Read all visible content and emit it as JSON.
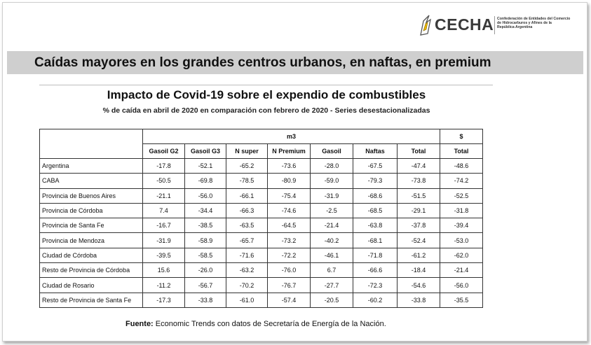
{
  "logo": {
    "name": "CECHA",
    "subtitle_lines": [
      "Confederación de Entidades del Comercio",
      "de Hidrocarburos y Afines de la",
      "República Argentina"
    ]
  },
  "banner": "Caídas mayores en los grandes centros urbanos, en naftas, en premium",
  "title": "Impacto de Covid-19 sobre el expendio de combustibles",
  "subtitle": "% de caída en abril de 2020 en comparación con febrero de 2020 - Series desestacionalizadas",
  "table": {
    "group_m3": "m3",
    "group_money": "$",
    "columns": [
      "Gasoil G2",
      "Gasoil G3",
      "N super",
      "N Premium",
      "Gasoil",
      "Naftas",
      "Total",
      "Total"
    ],
    "rows": [
      {
        "name": "Argentina",
        "values": [
          "-17.8",
          "-52.1",
          "-65.2",
          "-73.6",
          "-28.0",
          "-67.5",
          "-47.4",
          "-48.6"
        ]
      },
      {
        "name": "CABA",
        "values": [
          "-50.5",
          "-69.8",
          "-78.5",
          "-80.9",
          "-59.0",
          "-79.3",
          "-73.8",
          "-74.2"
        ]
      },
      {
        "name": "Provincia de Buenos Aires",
        "values": [
          "-21.1",
          "-56.0",
          "-66.1",
          "-75.4",
          "-31.9",
          "-68.6",
          "-51.5",
          "-52.5"
        ]
      },
      {
        "name": "Provincia de Córdoba",
        "values": [
          "7.4",
          "-34.4",
          "-66.3",
          "-74.6",
          "-2.5",
          "-68.5",
          "-29.1",
          "-31.8"
        ]
      },
      {
        "name": "Provincia de Santa Fe",
        "values": [
          "-16.7",
          "-38.5",
          "-63.5",
          "-64.5",
          "-21.4",
          "-63.8",
          "-37.8",
          "-39.4"
        ]
      },
      {
        "name": "Provincia de Mendoza",
        "values": [
          "-31.9",
          "-58.9",
          "-65.7",
          "-73.2",
          "-40.2",
          "-68.1",
          "-52.4",
          "-53.0"
        ]
      },
      {
        "name": "Ciudad de Córdoba",
        "values": [
          "-39.5",
          "-58.5",
          "-71.6",
          "-72.2",
          "-46.1",
          "-71.8",
          "-61.2",
          "-62.0"
        ]
      },
      {
        "name": "Resto de Provincia de Córdoba",
        "values": [
          "15.6",
          "-26.0",
          "-63.2",
          "-76.0",
          "6.7",
          "-66.6",
          "-18.4",
          "-21.4"
        ]
      },
      {
        "name": "Ciudad de Rosario",
        "values": [
          "-11.2",
          "-56.7",
          "-70.2",
          "-76.7",
          "-27.7",
          "-72.3",
          "-54.6",
          "-56.0"
        ]
      },
      {
        "name": "Resto de Provincia de Santa Fe",
        "values": [
          "-17.3",
          "-33.8",
          "-61.0",
          "-57.4",
          "-20.5",
          "-60.2",
          "-33.8",
          "-35.5"
        ]
      }
    ]
  },
  "source": {
    "label": "Fuente:",
    "text": " Economic Trends con datos de Secretaría de Energía de la Nación."
  },
  "colors": {
    "banner_bg": "#cfcfcf",
    "border": "#333333"
  }
}
